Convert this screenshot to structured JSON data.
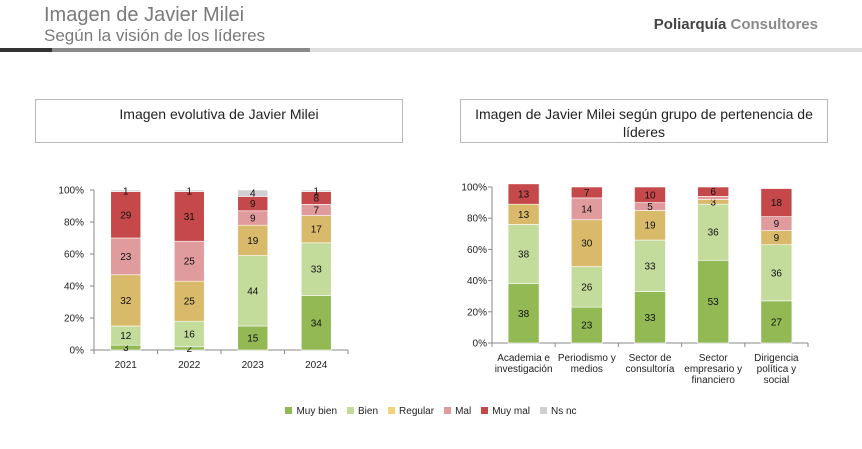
{
  "header": {
    "title": "Imagen de Javier Milei",
    "subtitle": "Según la visión de los líderes",
    "brand_bold": "Poliarquía",
    "brand_light": "Consultores"
  },
  "colors": {
    "Muy bien": "#92b954",
    "Bien": "#c3dc9c",
    "Regular": "#d9b96a",
    "Mal": "#e09b9d",
    "Muy mal": "#c5484a",
    "Ns nc": "#cfcfd4"
  },
  "legend": [
    {
      "label": "Muy bien",
      "color": "#92b954"
    },
    {
      "label": "Bien",
      "color": "#c3dc9c"
    },
    {
      "label": "Regular",
      "color": "#f2d27c"
    },
    {
      "label": "Mal",
      "color": "#e09b9d"
    },
    {
      "label": "Muy mal",
      "color": "#c5484a"
    },
    {
      "label": "Ns nc",
      "color": "#cfcfd4"
    }
  ],
  "chart_data": [
    {
      "type": "bar",
      "stacked": true,
      "title": "Imagen evolutiva de Javier Milei",
      "categories": [
        "2021",
        "2022",
        "2023",
        "2024"
      ],
      "yticks": [
        "0%",
        "20%",
        "40%",
        "60%",
        "80%",
        "100%"
      ],
      "ylim": [
        0,
        100
      ],
      "series": [
        {
          "name": "Muy bien",
          "values": [
            3,
            2,
            15,
            34
          ]
        },
        {
          "name": "Bien",
          "values": [
            12,
            16,
            44,
            33
          ]
        },
        {
          "name": "Regular",
          "values": [
            32,
            25,
            19,
            17
          ]
        },
        {
          "name": "Mal",
          "values": [
            23,
            25,
            9,
            7
          ]
        },
        {
          "name": "Muy mal",
          "values": [
            29,
            31,
            9,
            8
          ]
        },
        {
          "name": "Ns nc",
          "values": [
            1,
            1,
            4,
            1
          ]
        }
      ]
    },
    {
      "type": "bar",
      "stacked": true,
      "title": "Imagen de Javier Milei según grupo de pertenencia de líderes",
      "categories": [
        [
          "Academia e",
          "investigación"
        ],
        [
          "Periodismo y",
          "medios"
        ],
        [
          "Sector de",
          "consultoría"
        ],
        [
          "Sector",
          "empresario y",
          "financiero"
        ],
        [
          "Dirigencia",
          "política y",
          "social"
        ]
      ],
      "yticks": [
        "0%",
        "20%",
        "40%",
        "60%",
        "80%",
        "100%"
      ],
      "ylim": [
        0,
        100
      ],
      "series": [
        {
          "name": "Muy bien",
          "values": [
            38,
            23,
            33,
            53,
            27
          ]
        },
        {
          "name": "Bien",
          "values": [
            38,
            26,
            33,
            36,
            36
          ]
        },
        {
          "name": "Regular",
          "values": [
            13,
            30,
            19,
            3,
            9
          ]
        },
        {
          "name": "Mal",
          "values": [
            null,
            14,
            5,
            null,
            9
          ]
        },
        {
          "name": "Muy mal",
          "values": [
            13,
            7,
            10,
            6,
            18
          ]
        }
      ],
      "unlabeled_segments": [
        {
          "series": "Mal",
          "values": [
            0,
            0,
            0,
            2,
            0
          ]
        }
      ]
    }
  ]
}
